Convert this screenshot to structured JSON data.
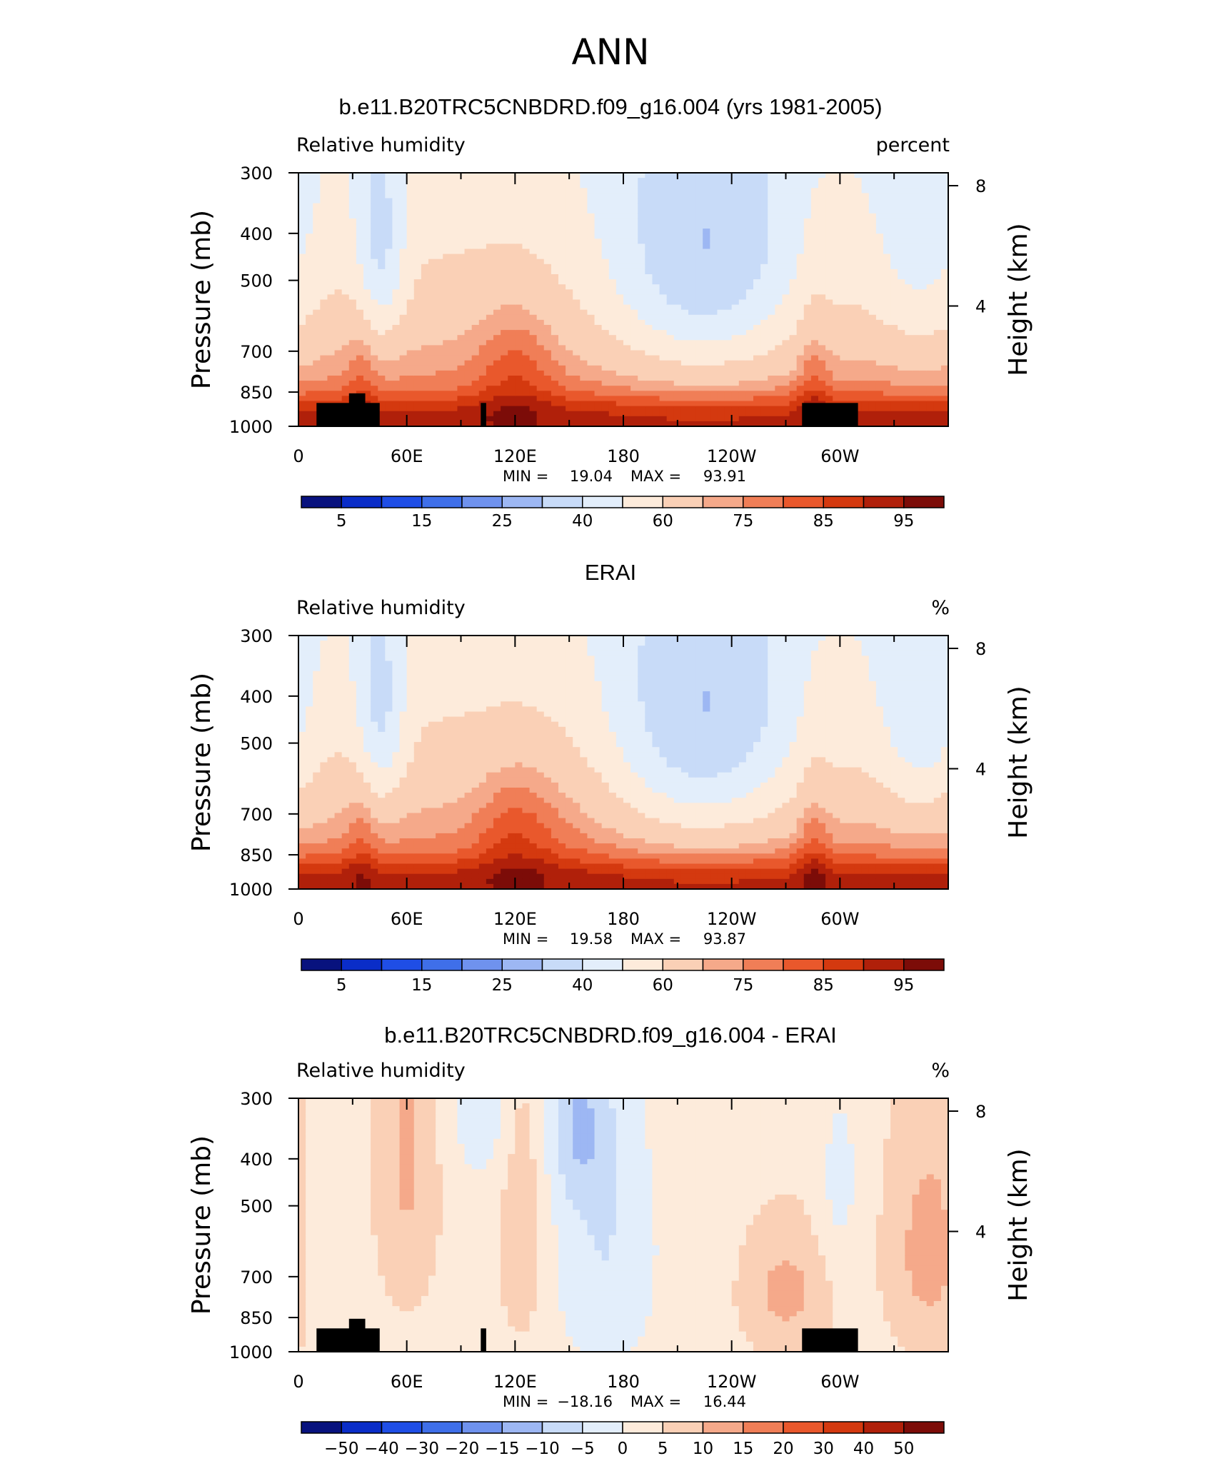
{
  "figure": {
    "title": "ANN"
  },
  "colors": {
    "rh_scale": [
      "#08127e",
      "#0a2dc8",
      "#1f4ee6",
      "#3f6fe9",
      "#6f92ee",
      "#9db7f3",
      "#c8dbf8",
      "#e3eefb",
      "#fdebdb",
      "#fad0b6",
      "#f5a98a",
      "#f07e57",
      "#e9582c",
      "#d4390f",
      "#b0200a",
      "#7c0c08"
    ],
    "diff_scale": [
      "#08127e",
      "#0a2dc8",
      "#1f4ee6",
      "#3f6fe9",
      "#6f92ee",
      "#9db7f3",
      "#c8dbf8",
      "#e3eefb",
      "#fdebdb",
      "#fad0b6",
      "#f5a98a",
      "#f07e57",
      "#e9582c",
      "#d4390f",
      "#b0200a",
      "#7c0c08"
    ],
    "topography": "#000000"
  },
  "chart_data": [
    {
      "type": "heatmap",
      "title": "b.e11.B20TRC5CNBDRD.f09_g16.004 (yrs 1981-2005)",
      "left_label": "Relative humidity",
      "right_label": "percent",
      "xlabel": "",
      "ylabel": "Pressure (mb)",
      "ylabel_right": "Height (km)",
      "x_ticks": [
        "0",
        "60E",
        "120E",
        "180",
        "120W",
        "60W"
      ],
      "y_ticks": [
        "300",
        "400",
        "500",
        "700",
        "850",
        "1000"
      ],
      "y_right_ticks": [
        "8",
        "4"
      ],
      "xlim": [
        0,
        360
      ],
      "ylim": [
        1000,
        300
      ],
      "min_label": "MIN =",
      "min_value": "19.04",
      "max_label": "MAX =",
      "max_value": "93.91",
      "colorbar_labels": [
        "5",
        "15",
        "25",
        "40",
        "60",
        "75",
        "85",
        "95"
      ],
      "levels": [
        0,
        5,
        10,
        15,
        20,
        25,
        30,
        40,
        50,
        60,
        70,
        75,
        80,
        85,
        90,
        95,
        100
      ],
      "topography": true
    },
    {
      "type": "heatmap",
      "title": "ERAI",
      "left_label": "Relative humidity",
      "right_label": "%",
      "xlabel": "",
      "ylabel": "Pressure (mb)",
      "ylabel_right": "Height (km)",
      "x_ticks": [
        "0",
        "60E",
        "120E",
        "180",
        "120W",
        "60W"
      ],
      "y_ticks": [
        "300",
        "400",
        "500",
        "700",
        "850",
        "1000"
      ],
      "y_right_ticks": [
        "8",
        "4"
      ],
      "xlim": [
        0,
        360
      ],
      "ylim": [
        1000,
        300
      ],
      "min_label": "MIN =",
      "min_value": "19.58",
      "max_label": "MAX =",
      "max_value": "93.87",
      "colorbar_labels": [
        "5",
        "15",
        "25",
        "40",
        "60",
        "75",
        "85",
        "95"
      ],
      "levels": [
        0,
        5,
        10,
        15,
        20,
        25,
        30,
        40,
        50,
        60,
        70,
        75,
        80,
        85,
        90,
        95,
        100
      ],
      "topography": false
    },
    {
      "type": "heatmap",
      "title": "b.e11.B20TRC5CNBDRD.f09_g16.004 - ERAI",
      "left_label": "Relative humidity",
      "right_label": "%",
      "xlabel": "",
      "ylabel": "Pressure (mb)",
      "ylabel_right": "Height (km)",
      "x_ticks": [
        "0",
        "60E",
        "120E",
        "180",
        "120W",
        "60W"
      ],
      "y_ticks": [
        "300",
        "400",
        "500",
        "700",
        "850",
        "1000"
      ],
      "y_right_ticks": [
        "8",
        "4"
      ],
      "xlim": [
        0,
        360
      ],
      "ylim": [
        1000,
        300
      ],
      "min_label": "MIN =",
      "min_value": "−18.16",
      "max_label": "MAX =",
      "max_value": "16.44",
      "colorbar_labels": [
        "−50",
        "−40",
        "−30",
        "−20",
        "−15",
        "−10",
        "−5",
        "0",
        "5",
        "10",
        "15",
        "20",
        "30",
        "40",
        "50"
      ],
      "levels": [
        -60,
        -50,
        -40,
        -30,
        -20,
        -15,
        -10,
        -5,
        0,
        5,
        10,
        15,
        20,
        30,
        40,
        50,
        60
      ],
      "topography": true
    }
  ]
}
